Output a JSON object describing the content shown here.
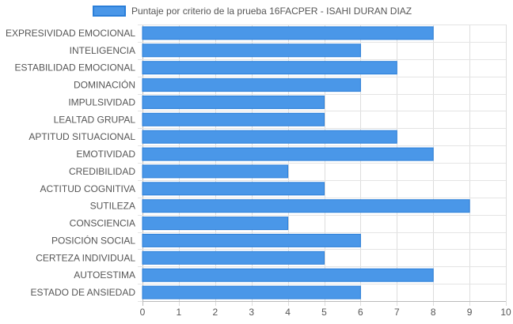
{
  "chart_data": {
    "type": "bar",
    "orientation": "horizontal",
    "categories": [
      "EXPRESIVIDAD EMOCIONAL",
      "INTELIGENCIA",
      "ESTABILIDAD EMOCIONAL",
      "DOMINACIÓN",
      "IMPULSIVIDAD",
      "LEALTAD GRUPAL",
      "APTITUD SITUACIONAL",
      "EMOTIVIDAD",
      "CREDIBILIDAD",
      "ACTITUD COGNITIVA",
      "SUTILEZA",
      "CONSCIENCIA",
      "POSICIÓN SOCIAL",
      "CERTEZA INDIVIDUAL",
      "AUTOESTIMA",
      "ESTADO DE ANSIEDAD"
    ],
    "series": [
      {
        "name": "Puntaje por criterio de la prueba 16FACPER - ISAHI DURAN DIAZ",
        "values": [
          8,
          6,
          7,
          6,
          5,
          5,
          7,
          8,
          4,
          5,
          9,
          4,
          6,
          5,
          8,
          6
        ],
        "color": "#4a97e8",
        "border_color": "#2b7fd9"
      }
    ],
    "xlim": [
      0,
      10
    ],
    "x_ticks": [
      "0",
      "1",
      "2",
      "3",
      "4",
      "5",
      "6",
      "7",
      "8",
      "9",
      "10"
    ],
    "grid": true,
    "legend_position": "top-center"
  }
}
